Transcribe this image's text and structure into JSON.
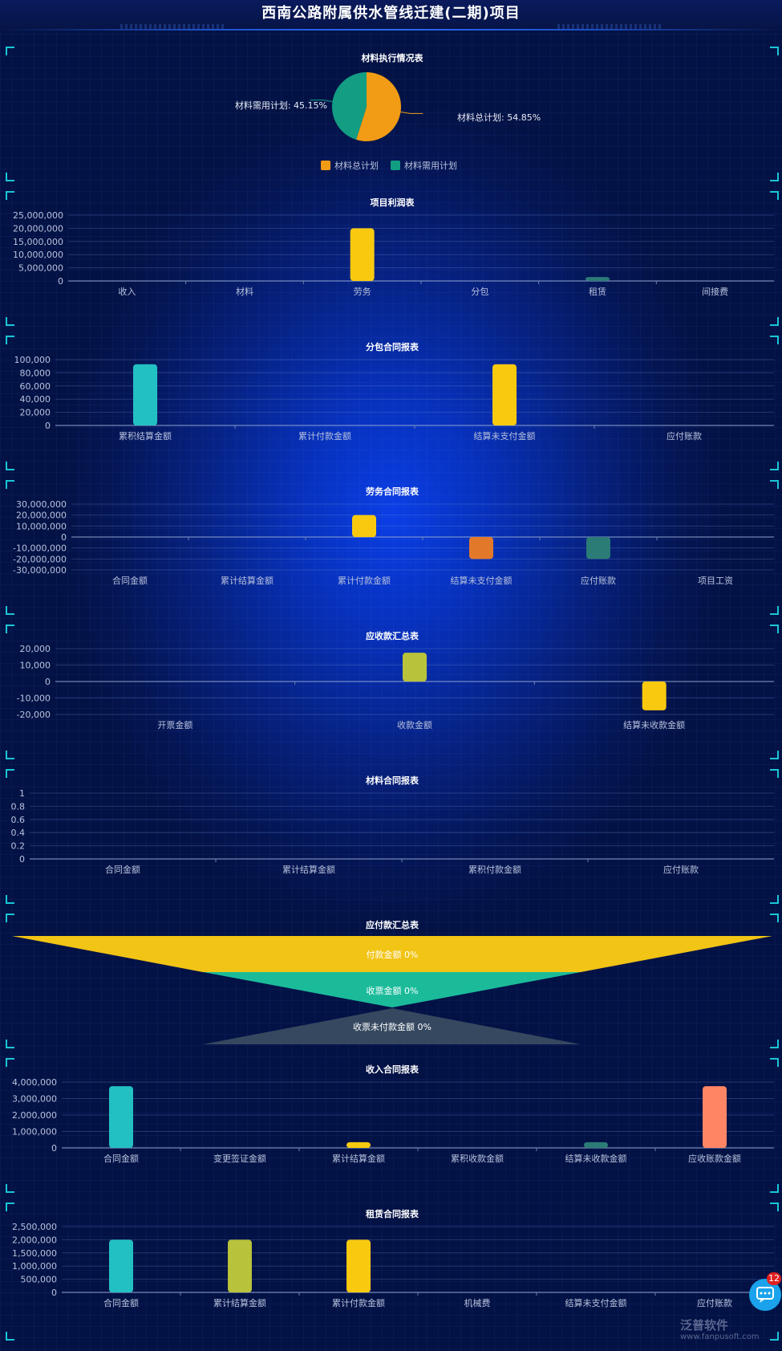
{
  "page": {
    "title": "西南公路附属供水管线迁建(二期)项目"
  },
  "colors": {
    "axis_text": "#b8c2dd",
    "grid": "rgba(120,150,220,0.28)",
    "corner": "#19c6d6"
  },
  "chart_data": [
    {
      "id": "material-execution",
      "type": "pie",
      "title": "材料执行情况表",
      "slices": [
        {
          "name": "材料总计划",
          "value": 54.85,
          "label": "材料总计划: 54.85%",
          "color": "#f29b14"
        },
        {
          "name": "材料需用计划",
          "value": 45.15,
          "label": "材料需用计划: 45.15%",
          "color": "#139d83"
        }
      ],
      "legend": [
        "材料总计划",
        "材料需用计划"
      ],
      "legend_position": "bottom"
    },
    {
      "id": "project-profit",
      "type": "bar",
      "title": "项目利润表",
      "categories": [
        "收入",
        "材料",
        "劳务",
        "分包",
        "租赁",
        "间接费"
      ],
      "values": [
        0,
        0,
        20000000,
        0,
        1500000,
        0
      ],
      "colors": [
        "#23c0c3",
        "#b8c23a",
        "#f8c90f",
        "#e2792a",
        "#2b7b76",
        "#ff8565"
      ],
      "yticks": [
        "0",
        "5,000,000",
        "10,000,000",
        "15,000,000",
        "20,000,000",
        "25,000,000"
      ],
      "ylim": [
        0,
        25000000
      ],
      "grid": true
    },
    {
      "id": "subcontract",
      "type": "bar",
      "title": "分包合同报表",
      "categories": [
        "累积结算金额",
        "累计付款金额",
        "结算未支付金额",
        "应付账款"
      ],
      "values": [
        93000,
        0,
        93000,
        0
      ],
      "colors": [
        "#23c0c3",
        "#b8c23a",
        "#f8c90f",
        "#e2792a"
      ],
      "yticks": [
        "0",
        "20,000",
        "40,000",
        "60,000",
        "80,000",
        "100,000"
      ],
      "ylim": [
        0,
        100000
      ],
      "grid": true
    },
    {
      "id": "labor-contract",
      "type": "bar",
      "title": "劳务合同报表",
      "categories": [
        "合同金额",
        "累计结算金额",
        "累计付款金额",
        "结算未支付金额",
        "应付账款",
        "项目工资"
      ],
      "values": [
        0,
        0,
        20000000,
        -20000000,
        -20000000,
        0
      ],
      "colors": [
        "#23c0c3",
        "#b8c23a",
        "#f8c90f",
        "#e2792a",
        "#2b7b76",
        "#ff8565"
      ],
      "yticks": [
        "-30,000,000",
        "-20,000,000",
        "-10,000,000",
        "0",
        "10,000,000",
        "20,000,000",
        "30,000,000"
      ],
      "ylim": [
        -30000000,
        30000000
      ],
      "grid": true
    },
    {
      "id": "receivable-summary",
      "type": "bar",
      "title": "应收款汇总表",
      "categories": [
        "开票金额",
        "收款金额",
        "结算未收款金额"
      ],
      "values": [
        0,
        17500,
        -17500
      ],
      "colors": [
        "#23c0c3",
        "#b8c23a",
        "#f8c90f"
      ],
      "yticks": [
        "-20,000",
        "-10,000",
        "0",
        "10,000",
        "20,000"
      ],
      "ylim": [
        -20000,
        20000
      ],
      "grid": true
    },
    {
      "id": "material-contract",
      "type": "bar",
      "title": "材料合同报表",
      "categories": [
        "合同金额",
        "累计结算金额",
        "累积付款金额",
        "应付账款"
      ],
      "values": [
        0,
        0,
        0,
        0
      ],
      "colors": [
        "#23c0c3",
        "#b8c23a",
        "#f8c90f",
        "#e2792a"
      ],
      "yticks": [
        "0",
        "0.2",
        "0.4",
        "0.6",
        "0.8",
        "1"
      ],
      "ylim": [
        0,
        1
      ],
      "grid": true
    },
    {
      "id": "payable-summary",
      "type": "funnel",
      "title": "应付款汇总表",
      "stages": [
        {
          "name": "付款金额",
          "label": "付款金额 0%",
          "value": 0,
          "color": "#f1c415"
        },
        {
          "name": "收票金额",
          "label": "收票金额 0%",
          "value": 0,
          "color": "#1bbb9a"
        },
        {
          "name": "收票未付款金额",
          "label": "收票未付款金额 0%",
          "value": 0,
          "color": "#35485f"
        }
      ]
    },
    {
      "id": "income-contract",
      "type": "bar",
      "title": "收入合同报表",
      "categories": [
        "合同金额",
        "变更签证金额",
        "累计结算金额",
        "累积收款金额",
        "结算未收款金额",
        "应收账款金额"
      ],
      "values": [
        3750000,
        0,
        350000,
        0,
        350000,
        3750000
      ],
      "colors": [
        "#23c0c3",
        "#b8c23a",
        "#f8c90f",
        "#e2792a",
        "#2b7b76",
        "#ff8565"
      ],
      "yticks": [
        "0",
        "1,000,000",
        "2,000,000",
        "3,000,000",
        "4,000,000"
      ],
      "ylim": [
        0,
        4000000
      ],
      "grid": true
    },
    {
      "id": "lease-contract",
      "type": "bar",
      "title": "租赁合同报表",
      "categories": [
        "合同金额",
        "累计结算金额",
        "累计付款金额",
        "机械费",
        "结算未支付金额",
        "应付账款"
      ],
      "values": [
        2000000,
        2000000,
        2000000,
        0,
        0,
        0
      ],
      "colors": [
        "#23c0c3",
        "#b8c23a",
        "#f8c90f",
        "#e2792a",
        "#2b7b76",
        "#ff8565"
      ],
      "yticks": [
        "0",
        "500,000",
        "1,000,000",
        "1,500,000",
        "2,000,000",
        "2,500,000"
      ],
      "ylim": [
        0,
        2500000
      ],
      "grid": true
    }
  ],
  "chat_widget": {
    "badge_count": "12"
  },
  "watermark": {
    "brand": "泛普软件",
    "url": "www.fanpusoft.com"
  }
}
